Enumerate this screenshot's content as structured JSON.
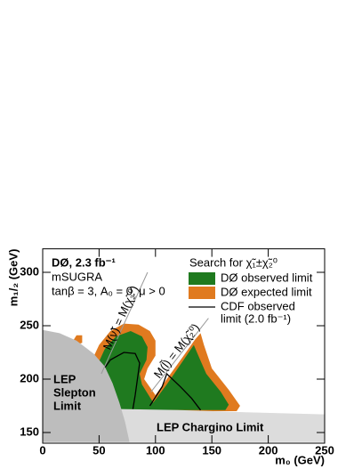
{
  "chart_data": {
    "type": "contour",
    "annotations": [
      "DØ, 2.3 fb⁻¹",
      "mSUGRA",
      "tanβ = 3, A₀ = 0, μ > 0"
    ],
    "legend_title": "Search for χ̃₁±χ̃₂⁰",
    "x_label": "m₀ (GeV)",
    "y_label": "m₁/₂ (GeV)",
    "xlim": [
      0,
      250
    ],
    "ylim": [
      140,
      322
    ],
    "xticks": [
      0,
      50,
      100,
      150,
      200,
      250
    ],
    "yticks": [
      150,
      200,
      250,
      300
    ],
    "series": [
      {
        "name": [
          "DØ expected limit"
        ],
        "color": "#e07a1f",
        "style": "fill",
        "x": [
          42,
          50,
          60,
          72,
          85,
          95,
          100,
          100,
          93,
          90,
          100,
          110,
          125,
          135,
          140,
          143,
          150,
          165,
          175,
          172,
          60,
          45,
          null,
          27,
          30,
          35,
          35,
          29
        ],
        "values": [
          214,
          232,
          245,
          252,
          251,
          245,
          236,
          222,
          210,
          200,
          185,
          200,
          222,
          237,
          243,
          232,
          210,
          190,
          175,
          170,
          170,
          195,
          null,
          236,
          241,
          241,
          234,
          232
        ]
      },
      {
        "name": [
          "DØ observed limit"
        ],
        "color": "#1f7a1f",
        "style": "fill",
        "x": [
          48,
          55,
          65,
          78,
          88,
          93,
          92,
          86,
          88,
          98,
          110,
          125,
          134,
          138,
          145,
          158,
          165,
          162,
          65,
          52
        ],
        "values": [
          212,
          228,
          240,
          245,
          240,
          230,
          218,
          205,
          195,
          178,
          195,
          218,
          232,
          222,
          205,
          188,
          176,
          171,
          171,
          190
        ]
      },
      {
        "name": [
          "CDF observed",
          "limit (2.0 fb⁻¹)"
        ],
        "color": "#000000",
        "style": "line",
        "x": [
          52,
          60,
          72,
          82,
          86,
          84,
          82,
          80,
          null,
          95,
          106,
          110,
          122,
          132,
          140
        ],
        "values": [
          206,
          218,
          225,
          224,
          215,
          200,
          185,
          172,
          null,
          175,
          193,
          205,
          193,
          182,
          171
        ]
      }
    ],
    "regions": [
      {
        "label": [
          "LEP Chargino Limit"
        ],
        "color": "#dcdcdc",
        "x": [
          68,
          120,
          180,
          250,
          250,
          77
        ],
        "values": [
          172,
          171,
          169,
          167,
          141,
          141
        ]
      },
      {
        "label": [
          "LEP",
          "Slepton",
          "Limit"
        ],
        "color": "#bdbdbd",
        "x": [
          0,
          15,
          30,
          45,
          55,
          62,
          68,
          73,
          77,
          0
        ],
        "values": [
          246,
          243,
          236,
          224,
          212,
          196,
          178,
          160,
          141,
          141
        ]
      }
    ],
    "lines": [
      {
        "label": "M(ν̃) = M(χ̃₂⁰)",
        "color": "#999999",
        "x": [
          52,
          93
        ],
        "values": [
          205,
          300
        ]
      },
      {
        "label": "M(l̃) = M(χ̃₂⁰)",
        "color": "#999999",
        "x": [
          96,
          147
        ],
        "values": [
          188,
          257
        ]
      }
    ]
  }
}
